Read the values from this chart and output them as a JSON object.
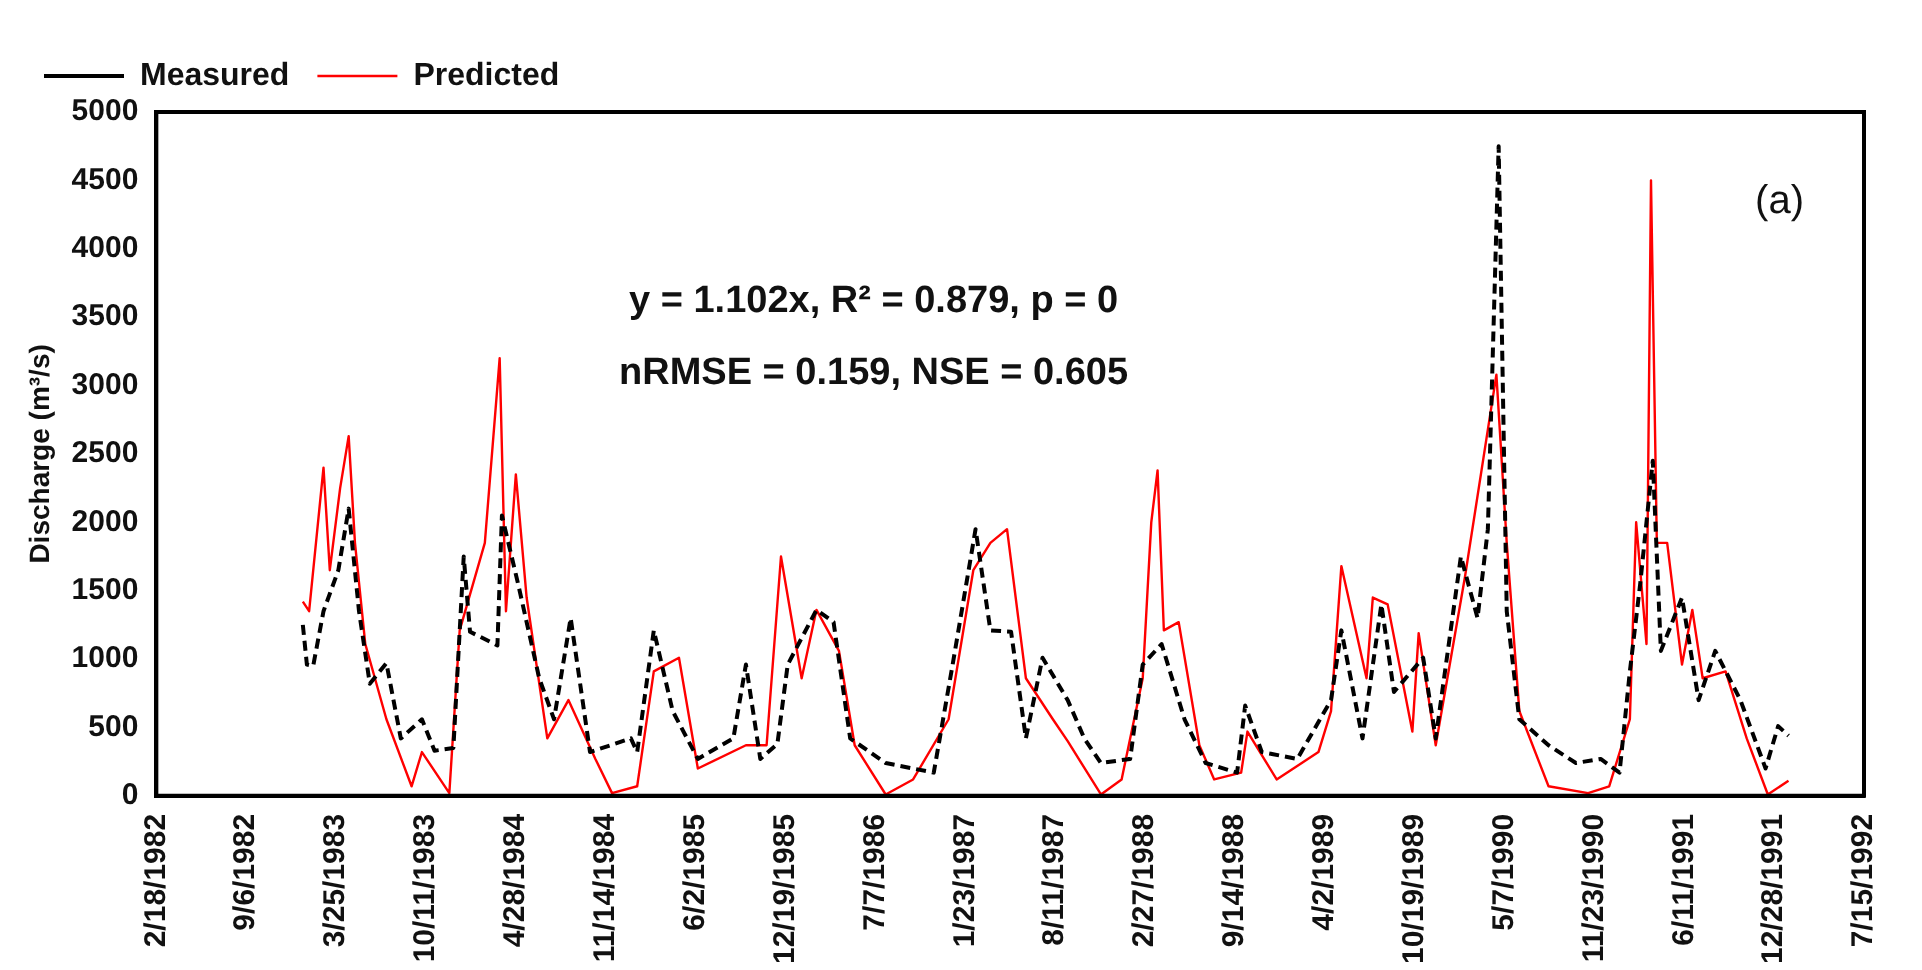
{
  "chart_data": {
    "type": "line",
    "ylabel": "Discharge (m³/s)",
    "legend": "top left",
    "marker": "none",
    "grid": false,
    "annotations": [
      "y = 1.102x, R² = 0.879, p = 0",
      "nRMSE = 0.159, NSE = 0.605",
      "(a)"
    ],
    "ylim": [
      0,
      5000
    ],
    "yticks": [
      0,
      500,
      1000,
      1500,
      2000,
      2500,
      3000,
      3500,
      4000,
      4500,
      5000
    ],
    "xlim": [
      "1982-02-18",
      "1992-07-15"
    ],
    "xticks": [
      {
        "value": "1982-02-18",
        "label": "2/18/1982"
      },
      {
        "value": "1982-09-06",
        "label": "9/6/1982"
      },
      {
        "value": "1983-03-25",
        "label": "3/25/1983"
      },
      {
        "value": "1983-10-11",
        "label": "10/11/1983"
      },
      {
        "value": "1984-04-28",
        "label": "4/28/1984"
      },
      {
        "value": "1984-11-14",
        "label": "11/14/1984"
      },
      {
        "value": "1985-06-02",
        "label": "6/2/1985"
      },
      {
        "value": "1985-12-19",
        "label": "12/19/1985"
      },
      {
        "value": "1986-07-07",
        "label": "7/7/1986"
      },
      {
        "value": "1987-01-23",
        "label": "1/23/1987"
      },
      {
        "value": "1987-08-11",
        "label": "8/11/1987"
      },
      {
        "value": "1988-02-27",
        "label": "2/27/1988"
      },
      {
        "value": "1988-09-14",
        "label": "9/14/1988"
      },
      {
        "value": "1989-04-02",
        "label": "4/2/1989"
      },
      {
        "value": "1989-10-19",
        "label": "10/19/1989"
      },
      {
        "value": "1990-05-07",
        "label": "5/7/1990"
      },
      {
        "value": "1990-11-23",
        "label": "11/23/1990"
      },
      {
        "value": "1991-06-11",
        "label": "6/11/1991"
      },
      {
        "value": "1991-12-28",
        "label": "12/28/1991"
      },
      {
        "value": "1992-07-15",
        "label": "7/15/1992"
      }
    ],
    "series": [
      {
        "name": "Measured",
        "color": "#000000",
        "line_style": "dashed",
        "x": [
          "1983-01-10",
          "1983-01-19",
          "1983-02-02",
          "1983-02-25",
          "1983-03-30",
          "1983-04-22",
          "1983-05-15",
          "1983-06-08",
          "1983-07-15",
          "1983-08-16",
          "1983-10-02",
          "1983-10-30",
          "1983-12-11",
          "1984-01-03",
          "1984-01-17",
          "1984-03-18",
          "1984-03-28",
          "1984-05-03",
          "1984-06-19",
          "1984-07-22",
          "1984-08-28",
          "1984-10-10",
          "1985-01-09",
          "1985-01-23",
          "1985-03-01",
          "1985-04-12",
          "1985-06-07",
          "1985-08-25",
          "1985-09-22",
          "1985-10-24",
          "1985-12-01",
          "1985-12-24",
          "1986-02-26",
          "1986-04-05",
          "1986-05-12",
          "1986-07-30",
          "1986-11-14",
          "1986-12-26",
          "1987-02-15",
          "1987-03-20",
          "1987-05-05",
          "1987-06-07",
          "1987-07-14",
          "1987-09-08",
          "1987-10-15",
          "1987-11-21",
          "1988-01-25",
          "1988-02-22",
          "1988-04-04",
          "1988-05-25",
          "1988-07-11",
          "1988-09-19",
          "1988-10-07",
          "1988-11-13",
          "1989-01-31",
          "1989-04-16",
          "1989-05-09",
          "1989-06-25",
          "1989-08-06",
          "1989-09-03",
          "1989-11-07",
          "1989-12-05",
          "1990-01-30",
          "1990-03-08",
          "1990-03-31",
          "1990-04-24",
          "1990-05-12",
          "1990-06-09",
          "1990-08-13",
          "1990-10-13",
          "1990-12-07",
          "1991-01-18",
          "1991-02-10",
          "1991-03-05",
          "1991-04-02",
          "1991-04-20",
          "1991-06-06",
          "1991-07-13",
          "1991-08-19",
          "1991-10-14",
          "1991-12-09",
          "1992-01-06",
          "1992-01-29"
        ],
        "values": [
          1250,
          960,
          950,
          1350,
          1650,
          2100,
          1350,
          820,
          970,
          420,
          560,
          330,
          350,
          1750,
          1200,
          1100,
          2050,
          1550,
          860,
          560,
          1300,
          320,
          420,
          320,
          1210,
          620,
          270,
          420,
          960,
          270,
          380,
          960,
          1360,
          1270,
          420,
          240,
          170,
          960,
          1950,
          1210,
          1200,
          420,
          1010,
          700,
          420,
          240,
          270,
          960,
          1110,
          560,
          240,
          170,
          660,
          320,
          270,
          700,
          1210,
          420,
          1400,
          760,
          1010,
          420,
          1750,
          1300,
          1950,
          4750,
          1350,
          560,
          370,
          240,
          270,
          170,
          910,
          1550,
          2450,
          1060,
          1450,
          700,
          1060,
          700,
          200,
          510,
          440
        ]
      },
      {
        "name": "Predicted",
        "color": "#ff0000",
        "line_style": "solid",
        "x": [
          "1983-01-10",
          "1983-01-24",
          "1983-02-25",
          "1983-03-11",
          "1983-04-03",
          "1983-04-22",
          "1983-05-06",
          "1983-05-29",
          "1983-07-15",
          "1983-09-09",
          "1983-10-02",
          "1983-12-02",
          "1983-12-25",
          "1984-02-19",
          "1984-03-23",
          "1984-04-06",
          "1984-04-28",
          "1984-05-22",
          "1984-07-07",
          "1984-08-23",
          "1984-10-22",
          "1984-11-28",
          "1985-01-23",
          "1985-03-01",
          "1985-04-26",
          "1985-06-07",
          "1985-09-22",
          "1985-11-07",
          "1985-12-09",
          "1986-01-24",
          "1986-02-26",
          "1986-04-17",
          "1986-05-22",
          "1986-07-30",
          "1986-09-29",
          "1986-12-17",
          "1987-02-10",
          "1987-03-20",
          "1987-04-26",
          "1987-06-07",
          "1987-08-06",
          "1987-09-08",
          "1987-11-21",
          "1988-01-06",
          "1988-02-22",
          "1988-03-12",
          "1988-03-26",
          "1988-04-09",
          "1988-05-12",
          "1988-06-27",
          "1988-07-30",
          "1988-09-28",
          "1988-10-12",
          "1988-12-16",
          "1989-03-19",
          "1989-04-16",
          "1989-05-09",
          "1989-07-04",
          "1989-07-18",
          "1989-08-20",
          "1989-10-14",
          "1989-10-28",
          "1989-12-05",
          "1990-02-08",
          "1990-04-19",
          "1990-05-12",
          "1990-06-09",
          "1990-08-13",
          "1990-11-09",
          "1990-12-26",
          "1991-02-10",
          "1991-02-24",
          "1991-03-19",
          "1991-03-29",
          "1991-04-11",
          "1991-05-04",
          "1991-06-06",
          "1991-06-29",
          "1991-07-22",
          "1991-09-11",
          "1991-10-28",
          "1991-12-14",
          "1992-01-29"
        ],
        "values": [
          1420,
          1350,
          2400,
          1650,
          2250,
          2630,
          1850,
          1110,
          560,
          70,
          320,
          20,
          1210,
          1850,
          3200,
          1350,
          2350,
          1450,
          420,
          700,
          270,
          20,
          70,
          910,
          1010,
          200,
          370,
          370,
          1750,
          860,
          1360,
          1060,
          370,
          10,
          120,
          560,
          1650,
          1850,
          1950,
          860,
          560,
          400,
          10,
          120,
          860,
          2000,
          2380,
          1210,
          1270,
          370,
          120,
          170,
          470,
          120,
          320,
          620,
          1680,
          860,
          1450,
          1400,
          470,
          1190,
          370,
          1600,
          3080,
          1850,
          620,
          70,
          20,
          70,
          560,
          2000,
          1110,
          4500,
          1850,
          1850,
          960,
          1360,
          860,
          910,
          420,
          10,
          110
        ]
      }
    ]
  }
}
